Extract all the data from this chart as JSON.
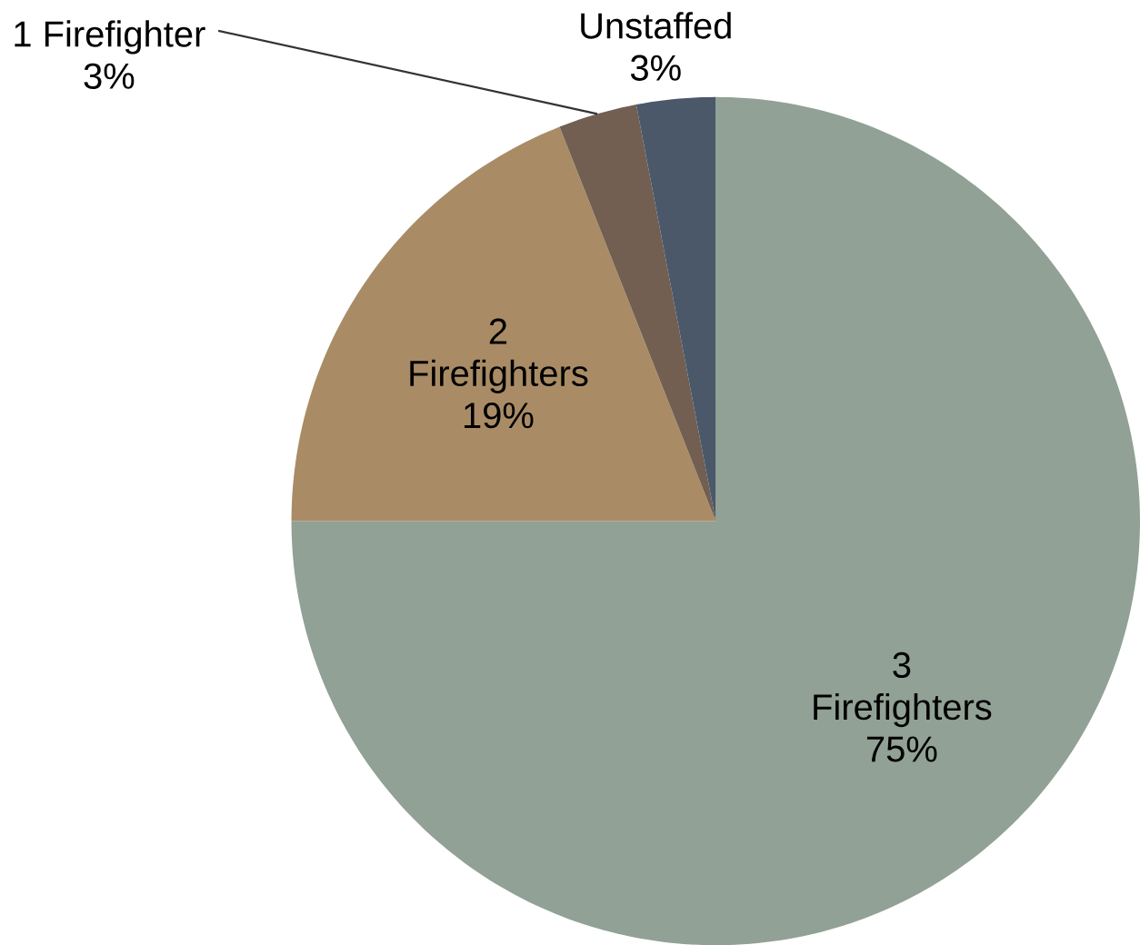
{
  "chart_data": {
    "type": "pie",
    "categories": [
      "3 Firefighters",
      "2 Firefighters",
      "1 Firefighter",
      "Unstaffed"
    ],
    "values": [
      75,
      19,
      3,
      3
    ],
    "value_labels": [
      "75%",
      "19%",
      "3%",
      "3%"
    ],
    "colors": [
      "#91a195",
      "#a98c65",
      "#725f52",
      "#4a586a"
    ]
  }
}
